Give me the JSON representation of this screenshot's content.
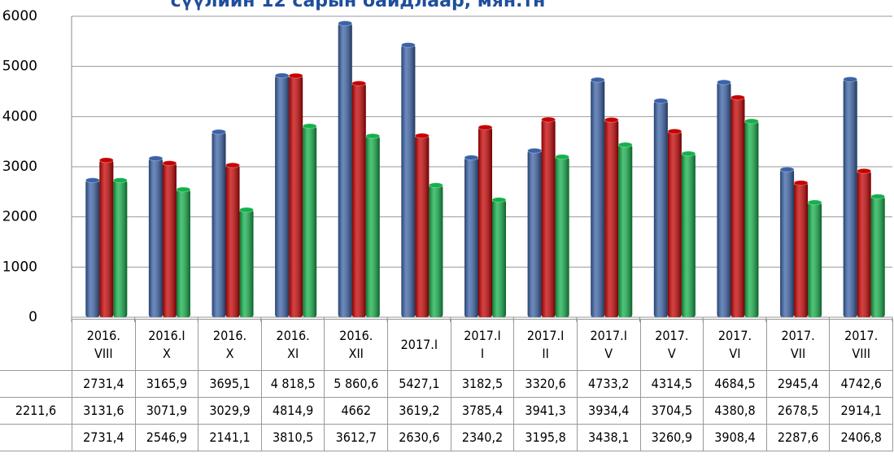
{
  "chart_data": {
    "type": "bar",
    "title": "сүүлийн 12 сарын байдлаар, мян.тн",
    "categories": [
      "2016.\nVIII",
      "2016.I\nX",
      "2016.\nX",
      "2016.\nXI",
      "2016.\nXII",
      "2017.I",
      "2017.I\nI",
      "2017.I\nII",
      "2017.I\nV",
      "2017.\nV",
      "2017.\nVI",
      "2017.\nVII",
      "2017.\nVIII"
    ],
    "series": [
      {
        "color": "#3a62a8",
        "values": [
          2731.4,
          3165.9,
          3695.1,
          4818.5,
          5860.6,
          5427.1,
          3182.5,
          3320.6,
          4733.2,
          4314.5,
          4684.5,
          2945.4,
          4742.6
        ],
        "value_labels": [
          "2731,4",
          "3165,9",
          "3695,1",
          "4 818,5",
          "5 860,6",
          "5427,1",
          "3182,5",
          "3320,6",
          "4733,2",
          "4314,5",
          "4684,5",
          "2945,4",
          "4742,6"
        ]
      },
      {
        "name": "2211,6",
        "color": "#c80000",
        "values": [
          3131.6,
          3071.9,
          3029.9,
          4814.9,
          4662,
          3619.2,
          3785.4,
          3941.3,
          3934.4,
          3704.5,
          4380.8,
          2678.5,
          2914.1
        ],
        "value_labels": [
          "3131,6",
          "3071,9",
          "3029,9",
          "4814,9",
          "4662",
          "3619,2",
          "3785,4",
          "3941,3",
          "3934,4",
          "3704,5",
          "4380,8",
          "2678,5",
          "2914,1"
        ]
      },
      {
        "color": "#12b14a",
        "values": [
          2731.4,
          2546.9,
          2141.1,
          3810.5,
          3612.7,
          2630.6,
          2340.2,
          3195.8,
          3438.1,
          3260.9,
          3908.4,
          2287.6,
          2406.8
        ],
        "value_labels": [
          "2731,4",
          "2546,9",
          "2141,1",
          "3810,5",
          "3612,7",
          "2630,6",
          "2340,2",
          "3195,8",
          "3438,1",
          "3260,9",
          "3908,4",
          "2287,6",
          "2406,8"
        ]
      }
    ],
    "ylim": [
      0,
      6000
    ],
    "yticks": [
      0,
      1000,
      2000,
      3000,
      4000,
      5000,
      6000
    ],
    "grid": true
  }
}
